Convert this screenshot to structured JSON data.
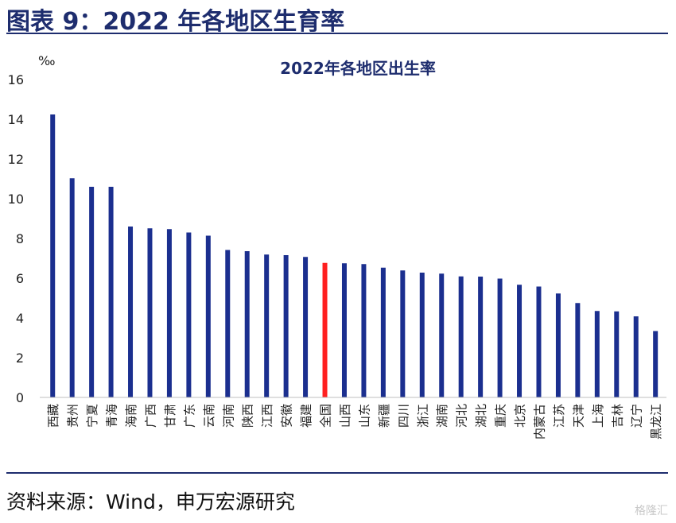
{
  "figure_title": "图表 9：2022 年各地区生育率",
  "source": "资料来源：Wind，申万宏源研究",
  "watermark": "格隆汇",
  "colors": {
    "bar": "#1b2f8f",
    "highlight": "#ff1f1f",
    "title": "#1e2d6e"
  },
  "chart_data": {
    "type": "bar",
    "title": "2022年各地区出生率",
    "ylabel": "‰",
    "xlabel": "",
    "ylim": [
      0,
      16
    ],
    "yticks": [
      0,
      2,
      4,
      6,
      8,
      10,
      12,
      14,
      16
    ],
    "grid": false,
    "categories": [
      "西藏",
      "贵州",
      "宁夏",
      "青海",
      "海南",
      "广西",
      "甘肃",
      "广东",
      "云南",
      "河南",
      "陕西",
      "江西",
      "安徽",
      "福建",
      "全国",
      "山西",
      "山东",
      "新疆",
      "四川",
      "浙江",
      "湖南",
      "河北",
      "湖北",
      "重庆",
      "北京",
      "内蒙古",
      "江苏",
      "天津",
      "上海",
      "吉林",
      "辽宁",
      "黑龙江"
    ],
    "values": [
      14.24,
      11.03,
      10.6,
      10.6,
      8.6,
      8.51,
      8.47,
      8.3,
      8.14,
      7.42,
      7.36,
      7.19,
      7.16,
      7.07,
      6.77,
      6.75,
      6.71,
      6.53,
      6.39,
      6.28,
      6.23,
      6.09,
      6.08,
      5.98,
      5.67,
      5.58,
      5.23,
      4.75,
      4.35,
      4.33,
      4.08,
      3.34
    ],
    "highlight_category": "全国"
  }
}
